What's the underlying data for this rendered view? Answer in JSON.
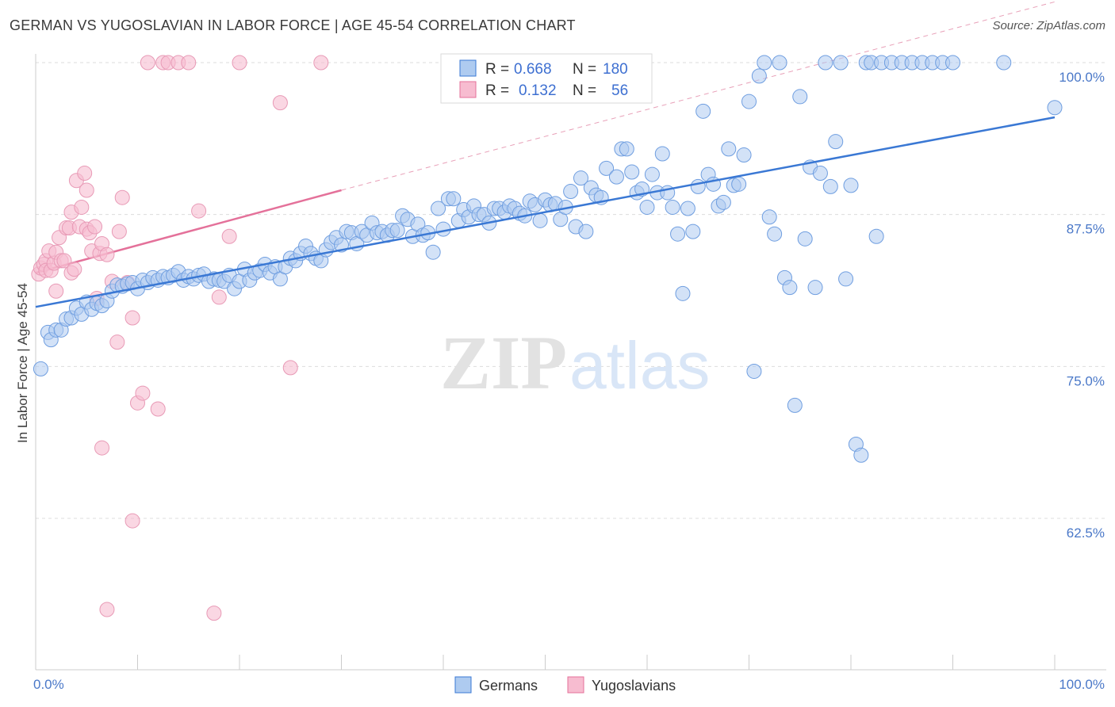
{
  "header": {
    "title": "GERMAN VS YUGOSLAVIAN IN LABOR FORCE | AGE 45-54 CORRELATION CHART",
    "source": "Source: ZipAtlas.com"
  },
  "watermark": {
    "zip": "ZIP",
    "atlas": "atlas"
  },
  "legend": {
    "germans": {
      "r_label": "R =",
      "r_value": "0.668",
      "n_label": "N =",
      "n_value": "180"
    },
    "yugoslavians": {
      "r_label": "R =",
      "r_value": "0.132",
      "n_label": "N =",
      "n_value": "56"
    }
  },
  "colors": {
    "blue": "#3a78d4",
    "blue_fill": "#aecbf0",
    "pink": "#e4719a",
    "pink_fill": "#f7bcd0",
    "tick_blue": "#4a78c8"
  },
  "chart_data": {
    "type": "scatter",
    "title": "GERMAN VS YUGOSLAVIAN IN LABOR FORCE | AGE 45-54 CORRELATION CHART",
    "xlabel": "",
    "ylabel": "In Labor Force | Age 45-54",
    "xlim": [
      0,
      100
    ],
    "ylim": [
      52.5,
      101.2
    ],
    "x_tick_labels": [
      "0.0%",
      "100.0%"
    ],
    "y_ticks": [
      62.5,
      75.0,
      87.5,
      100.0
    ],
    "y_tick_labels": [
      "62.5%",
      "75.0%",
      "87.5%",
      "100.0%"
    ],
    "grid": "horizontal dashed",
    "legend_position": "top-center",
    "series": [
      {
        "name": "Germans",
        "color": "#3a78d4",
        "trendline": {
          "x": [
            0,
            100
          ],
          "y": [
            79.9,
            95.5
          ],
          "style": "solid"
        },
        "points": [
          [
            0.5,
            74.8
          ],
          [
            1.2,
            77.8
          ],
          [
            1.5,
            77.2
          ],
          [
            2,
            78
          ],
          [
            2.5,
            78
          ],
          [
            3,
            78.9
          ],
          [
            3.5,
            79
          ],
          [
            4,
            79.8
          ],
          [
            4.5,
            79.3
          ],
          [
            5,
            80.3
          ],
          [
            5.5,
            79.7
          ],
          [
            6,
            80.2
          ],
          [
            6.5,
            80
          ],
          [
            7,
            80.4
          ],
          [
            7.5,
            81.2
          ],
          [
            8,
            81.7
          ],
          [
            8.5,
            81.6
          ],
          [
            9,
            81.8
          ],
          [
            9.5,
            81.9
          ],
          [
            10,
            81.4
          ],
          [
            10.5,
            82.1
          ],
          [
            11,
            81.9
          ],
          [
            11.5,
            82.3
          ],
          [
            12,
            82.1
          ],
          [
            12.5,
            82.4
          ],
          [
            13,
            82.3
          ],
          [
            13.5,
            82.5
          ],
          [
            14,
            82.8
          ],
          [
            14.5,
            82.1
          ],
          [
            15,
            82.4
          ],
          [
            15.5,
            82.2
          ],
          [
            16,
            82.5
          ],
          [
            16.5,
            82.6
          ],
          [
            17,
            82
          ],
          [
            17.5,
            82.2
          ],
          [
            18,
            82.1
          ],
          [
            18.5,
            82
          ],
          [
            19,
            82.5
          ],
          [
            19.5,
            81.4
          ],
          [
            20,
            82
          ],
          [
            20.5,
            83
          ],
          [
            21,
            82.1
          ],
          [
            21.5,
            82.7
          ],
          [
            22,
            82.9
          ],
          [
            22.5,
            83.4
          ],
          [
            23,
            82.7
          ],
          [
            23.5,
            83.2
          ],
          [
            24,
            82.2
          ],
          [
            24.5,
            83.2
          ],
          [
            25,
            83.9
          ],
          [
            25.5,
            83.7
          ],
          [
            26,
            84.3
          ],
          [
            26.5,
            84.9
          ],
          [
            27,
            84.3
          ],
          [
            27.5,
            83.9
          ],
          [
            28,
            83.7
          ],
          [
            28.5,
            84.6
          ],
          [
            29,
            85.2
          ],
          [
            29.5,
            85.6
          ],
          [
            30,
            85
          ],
          [
            30.5,
            86.1
          ],
          [
            31,
            86
          ],
          [
            31.5,
            85.1
          ],
          [
            32,
            86.1
          ],
          [
            32.5,
            85.8
          ],
          [
            33,
            86.8
          ],
          [
            33.5,
            86
          ],
          [
            34,
            86.1
          ],
          [
            34.5,
            85.8
          ],
          [
            35,
            86.2
          ],
          [
            35.5,
            86.2
          ],
          [
            36,
            87.4
          ],
          [
            36.5,
            87.1
          ],
          [
            37,
            85.7
          ],
          [
            37.5,
            86.7
          ],
          [
            38,
            85.8
          ],
          [
            38.5,
            86
          ],
          [
            39,
            84.4
          ],
          [
            39.5,
            88
          ],
          [
            40,
            86.3
          ],
          [
            40.5,
            88.8
          ],
          [
            41,
            88.8
          ],
          [
            41.5,
            87
          ],
          [
            42,
            87.9
          ],
          [
            42.5,
            87.3
          ],
          [
            43,
            88.2
          ],
          [
            43.5,
            87.5
          ],
          [
            44,
            87.5
          ],
          [
            44.5,
            86.8
          ],
          [
            45,
            88
          ],
          [
            45.5,
            88
          ],
          [
            46,
            87.7
          ],
          [
            46.5,
            88.2
          ],
          [
            47,
            88
          ],
          [
            47.5,
            87.6
          ],
          [
            48,
            87.4
          ],
          [
            48.5,
            88.6
          ],
          [
            49,
            88.3
          ],
          [
            49.5,
            87
          ],
          [
            50,
            88.7
          ],
          [
            50.5,
            88.3
          ],
          [
            51,
            88.4
          ],
          [
            51.5,
            87.1
          ],
          [
            52,
            88.1
          ],
          [
            52.5,
            89.4
          ],
          [
            53,
            86.5
          ],
          [
            53.5,
            90.5
          ],
          [
            54,
            86.1
          ],
          [
            54.5,
            89.7
          ],
          [
            55,
            89.1
          ],
          [
            55.5,
            88.9
          ],
          [
            56,
            91.3
          ],
          [
            57,
            90.6
          ],
          [
            57.5,
            92.9
          ],
          [
            58,
            92.9
          ],
          [
            58.5,
            91
          ],
          [
            59,
            89.3
          ],
          [
            59.5,
            89.6
          ],
          [
            60,
            88.1
          ],
          [
            60.5,
            90.8
          ],
          [
            61,
            89.3
          ],
          [
            61.5,
            92.5
          ],
          [
            62,
            89.3
          ],
          [
            62.5,
            88.1
          ],
          [
            63,
            85.9
          ],
          [
            63.5,
            81
          ],
          [
            64,
            88
          ],
          [
            64.5,
            86.1
          ],
          [
            65,
            89.8
          ],
          [
            65.5,
            96
          ],
          [
            66,
            90.8
          ],
          [
            66.5,
            90
          ],
          [
            67,
            88.2
          ],
          [
            67.5,
            88.5
          ],
          [
            68,
            92.9
          ],
          [
            68.5,
            89.9
          ],
          [
            69,
            90
          ],
          [
            69.5,
            92.4
          ],
          [
            70,
            96.8
          ],
          [
            70.5,
            74.6
          ],
          [
            71,
            98.9
          ],
          [
            71.5,
            100
          ],
          [
            72,
            87.3
          ],
          [
            72.5,
            85.9
          ],
          [
            73,
            100
          ],
          [
            73.5,
            82.3
          ],
          [
            74,
            81.5
          ],
          [
            74.5,
            71.8
          ],
          [
            75,
            97.2
          ],
          [
            75.5,
            85.5
          ],
          [
            76,
            91.4
          ],
          [
            76.5,
            81.5
          ],
          [
            77,
            90.9
          ],
          [
            77.5,
            100
          ],
          [
            78,
            89.8
          ],
          [
            78.5,
            93.5
          ],
          [
            79,
            100
          ],
          [
            79.5,
            82.2
          ],
          [
            80,
            89.9
          ],
          [
            80.5,
            68.6
          ],
          [
            81,
            67.7
          ],
          [
            81.5,
            100
          ],
          [
            82,
            100
          ],
          [
            82.5,
            85.7
          ],
          [
            83,
            100
          ],
          [
            84,
            100
          ],
          [
            85,
            100
          ],
          [
            86,
            100
          ],
          [
            87,
            100
          ],
          [
            88,
            100
          ],
          [
            89,
            100
          ],
          [
            90,
            100
          ],
          [
            95,
            100
          ],
          [
            100,
            96.3
          ]
        ]
      },
      {
        "name": "Yugoslavians",
        "color": "#e4719a",
        "trendline": {
          "x": [
            0,
            30
          ],
          "y": [
            82.7,
            89.5
          ],
          "style": "solid",
          "extended_to": [
            100,
            105.0
          ]
        },
        "points": [
          [
            0.3,
            82.6
          ],
          [
            0.5,
            83.1
          ],
          [
            0.8,
            83.4
          ],
          [
            1,
            83.7
          ],
          [
            1,
            82.9
          ],
          [
            1.3,
            84.5
          ],
          [
            1.5,
            82.9
          ],
          [
            1.8,
            83.5
          ],
          [
            2,
            84.4
          ],
          [
            2,
            81.2
          ],
          [
            2.3,
            85.6
          ],
          [
            2.5,
            83.7
          ],
          [
            2.8,
            83.7
          ],
          [
            3,
            86.4
          ],
          [
            3.3,
            86.4
          ],
          [
            3.5,
            87.7
          ],
          [
            3.5,
            82.7
          ],
          [
            3.8,
            83
          ],
          [
            4,
            90.3
          ],
          [
            4.3,
            86.5
          ],
          [
            4.5,
            88.1
          ],
          [
            4.8,
            90.9
          ],
          [
            5,
            86.3
          ],
          [
            5,
            89.5
          ],
          [
            5.3,
            86
          ],
          [
            5.5,
            84.5
          ],
          [
            5.8,
            86.5
          ],
          [
            6,
            80.6
          ],
          [
            6.3,
            84.3
          ],
          [
            6.5,
            85.1
          ],
          [
            6.5,
            68.3
          ],
          [
            7,
            84.2
          ],
          [
            7,
            55
          ],
          [
            7.5,
            82
          ],
          [
            8,
            77
          ],
          [
            8.2,
            86.1
          ],
          [
            8.5,
            88.9
          ],
          [
            9,
            81.9
          ],
          [
            9.5,
            79
          ],
          [
            9.5,
            62.3
          ],
          [
            10,
            72
          ],
          [
            10.5,
            72.8
          ],
          [
            11,
            100
          ],
          [
            12,
            71.5
          ],
          [
            12.5,
            100
          ],
          [
            13,
            100
          ],
          [
            14,
            100
          ],
          [
            15,
            100
          ],
          [
            16,
            87.8
          ],
          [
            17.5,
            54.7
          ],
          [
            18,
            80.7
          ],
          [
            19,
            85.7
          ],
          [
            20,
            100
          ],
          [
            24,
            96.7
          ],
          [
            25,
            74.9
          ],
          [
            28,
            100
          ]
        ]
      }
    ]
  }
}
